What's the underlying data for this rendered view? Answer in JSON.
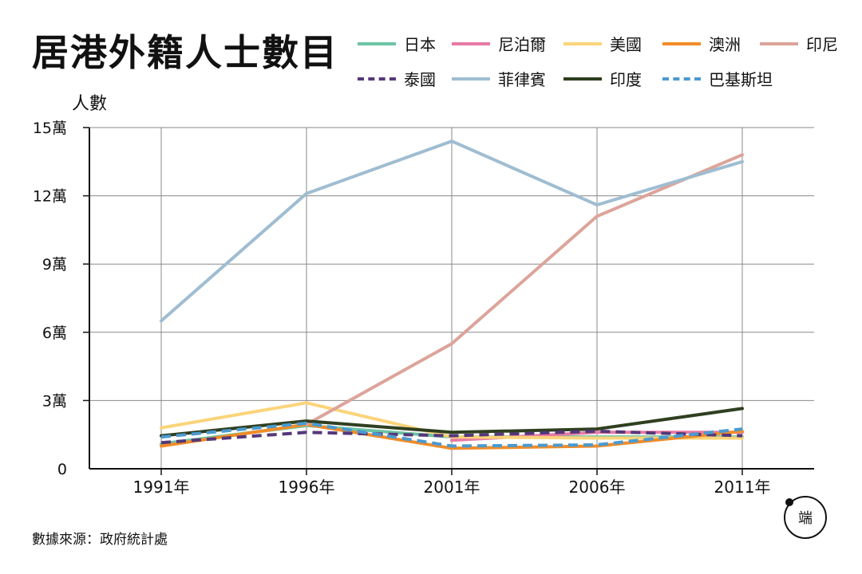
{
  "title": "居港外籍人士數目",
  "source": "數據來源：政府統計處",
  "chart_data": {
    "type": "line",
    "title": "居港外籍人士數目",
    "ylabel": "人數",
    "xlabel": "",
    "categories": [
      "1991年",
      "1996年",
      "2001年",
      "2006年",
      "2011年"
    ],
    "ylim": [
      0,
      150000
    ],
    "yticks": [
      {
        "value": 0,
        "label": "0"
      },
      {
        "value": 30000,
        "label": "3萬"
      },
      {
        "value": 60000,
        "label": "6萬"
      },
      {
        "value": 90000,
        "label": "9萬"
      },
      {
        "value": 120000,
        "label": "12萬"
      },
      {
        "value": 150000,
        "label": "15萬"
      }
    ],
    "grid": true,
    "legend_position": "top-right",
    "series": [
      {
        "name": "日本",
        "color": "#6cc4a4",
        "dashed": false,
        "values": [
          11000,
          19000,
          14000,
          14000,
          14000
        ]
      },
      {
        "name": "尼泊爾",
        "color": "#e87aa4",
        "dashed": false,
        "values": [
          null,
          null,
          12500,
          16000,
          16000
        ]
      },
      {
        "name": "美國",
        "color": "#fbd47a",
        "dashed": false,
        "values": [
          18000,
          29000,
          14000,
          13500,
          13500
        ]
      },
      {
        "name": "澳洲",
        "color": "#f28c28",
        "dashed": false,
        "values": [
          10000,
          19500,
          9000,
          10000,
          16500
        ]
      },
      {
        "name": "印尼",
        "color": "#dca49a",
        "dashed": false,
        "values": [
          null,
          19500,
          55000,
          111000,
          138000
        ]
      },
      {
        "name": "泰國",
        "color": "#55387a",
        "dashed": true,
        "values": [
          11500,
          16000,
          14500,
          16500,
          14500
        ]
      },
      {
        "name": "菲律賓",
        "color": "#9fbdd1",
        "dashed": false,
        "values": [
          65000,
          121000,
          144000,
          116000,
          135000
        ]
      },
      {
        "name": "印度",
        "color": "#2f3f20",
        "dashed": false,
        "values": [
          14500,
          21000,
          16000,
          17500,
          26500
        ]
      },
      {
        "name": "巴基斯坦",
        "color": "#4b9ad0",
        "dashed": true,
        "values": [
          14000,
          20000,
          10000,
          10500,
          17500
        ]
      }
    ]
  }
}
